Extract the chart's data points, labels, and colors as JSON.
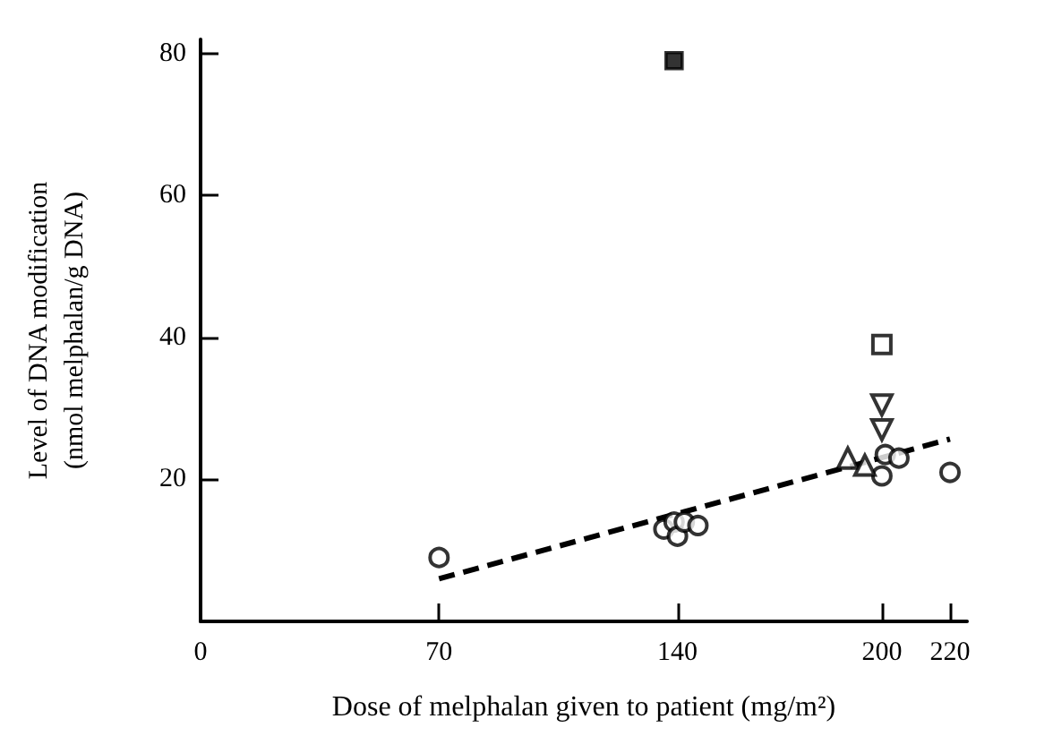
{
  "chart_data": {
    "type": "scatter",
    "xlabel": "Dose of melphalan given to patient (mg/m²)",
    "ylabel": "Level of DNA modification\n(nmol melphalan/g DNA)",
    "xlim": [
      0,
      225
    ],
    "ylim": [
      0,
      82
    ],
    "xticks": [
      0,
      70,
      140,
      200,
      220
    ],
    "yticks": [
      20,
      40,
      60,
      80
    ],
    "grid": false,
    "series": [
      {
        "marker": "circle",
        "color": "#000000",
        "x": [
          70,
          136,
          139,
          140,
          142,
          146,
          200,
          201,
          205,
          220
        ],
        "values": [
          9,
          13,
          14,
          12,
          14,
          13.5,
          20.5,
          23.5,
          23,
          21
        ]
      },
      {
        "marker": "square",
        "color": "#000000",
        "x": [
          139
        ],
        "values": [
          79
        ]
      },
      {
        "marker": "square-open",
        "color": "#000000",
        "x": [
          200
        ],
        "values": [
          39
        ]
      },
      {
        "marker": "triangle-down",
        "color": "#000000",
        "x": [
          200,
          200
        ],
        "values": [
          30.5,
          27
        ]
      },
      {
        "marker": "triangle",
        "color": "#000000",
        "x": [
          190,
          195
        ],
        "values": [
          23,
          22
        ]
      },
      {
        "type": "line",
        "line_style": "dashed",
        "marker": "none",
        "color": "#000000",
        "x": [
          70,
          220
        ],
        "values": [
          6,
          25.7
        ]
      }
    ]
  }
}
